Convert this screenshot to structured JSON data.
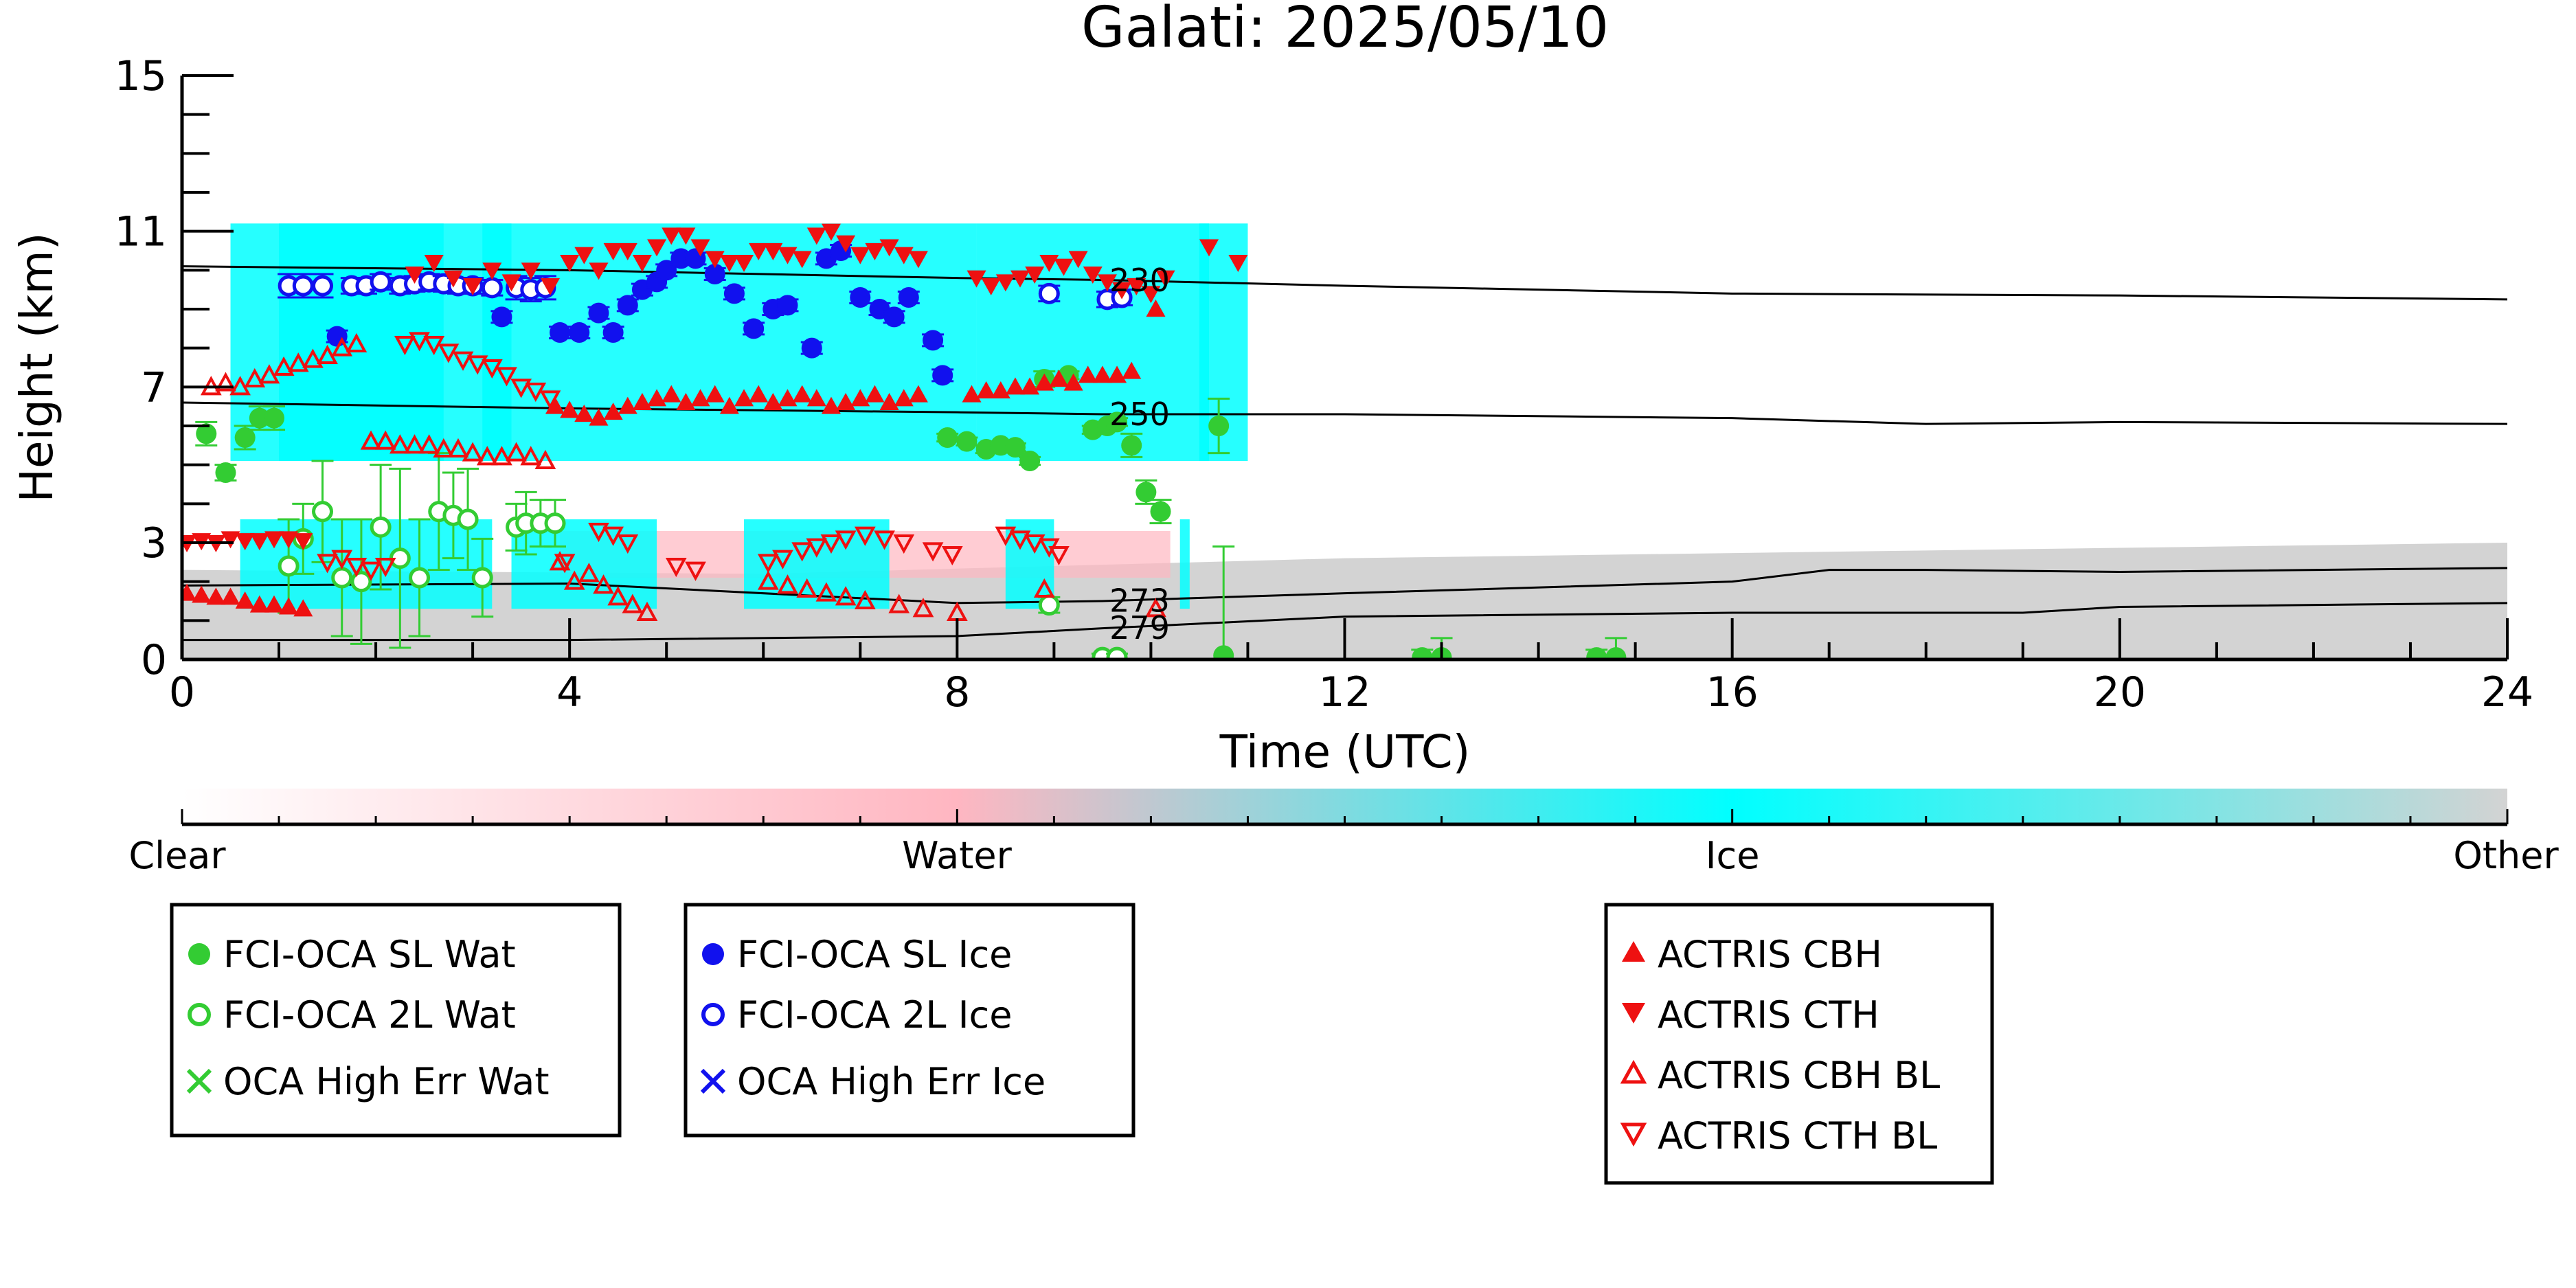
{
  "chart_data": {
    "type": "scatter",
    "title": "Galati: 2025/05/10",
    "xlabel": "Time (UTC)",
    "ylabel": "Height (km)",
    "xlim": [
      0,
      24
    ],
    "ylim": [
      0,
      15
    ],
    "x_ticks": [
      "0",
      "4",
      "8",
      "12",
      "16",
      "20",
      "24"
    ],
    "y_ticks": [
      "0",
      "3",
      "7",
      "11",
      "15"
    ],
    "colorbar": {
      "labels": [
        "Clear",
        "Water",
        "Ice",
        "Other"
      ],
      "colors": [
        "#ffffff",
        "#ffb6c1",
        "#00ffff",
        "#d3d3d3"
      ]
    },
    "background_regions": [
      {
        "class": "Other",
        "x": [
          0,
          24
        ],
        "y_top": [
          2.3,
          2.2,
          2.6,
          2.8,
          3.0
        ]
      },
      {
        "class": "Water",
        "x": [
          3.9,
          10.2
        ],
        "y": [
          2.1,
          3.3
        ]
      },
      {
        "class": "Ice",
        "x": [
          0.5,
          11
        ],
        "y": [
          1.3,
          3.6
        ],
        "segments": [
          [
            0.6,
            3.2
          ],
          [
            3.4,
            4.9
          ],
          [
            5.8,
            7.3
          ],
          [
            8.5,
            9.0
          ],
          [
            10.3,
            10.4
          ]
        ]
      },
      {
        "class": "Ice",
        "x": [
          0.3,
          11
        ],
        "y": [
          5.1,
          11.2
        ],
        "segments": [
          [
            0.5,
            2.7
          ],
          [
            1.0,
            3.4
          ],
          [
            3.1,
            8.2
          ],
          [
            8.2,
            10.6
          ],
          [
            10.5,
            11.0
          ]
        ]
      }
    ],
    "temperature_contours": [
      {
        "label": "230",
        "x": [
          0,
          4,
          8,
          9.5,
          12,
          16,
          20,
          24
        ],
        "y": [
          10.1,
          10.0,
          9.8,
          9.75,
          9.6,
          9.4,
          9.35,
          9.25
        ]
      },
      {
        "label": "250",
        "x": [
          0,
          4,
          8,
          9.5,
          12,
          16,
          18,
          20,
          24
        ],
        "y": [
          6.6,
          6.45,
          6.35,
          6.3,
          6.3,
          6.2,
          6.05,
          6.1,
          6.05
        ]
      },
      {
        "label": "273",
        "x": [
          0,
          4,
          8,
          9.5,
          12,
          16,
          17,
          18,
          20,
          24
        ],
        "y": [
          1.9,
          1.95,
          1.45,
          1.5,
          1.7,
          2.0,
          2.3,
          2.3,
          2.25,
          2.35
        ]
      },
      {
        "label": "279",
        "x": [
          0,
          4,
          8,
          9.5,
          12,
          16,
          19,
          20,
          24
        ],
        "y": [
          0.5,
          0.5,
          0.6,
          0.8,
          1.1,
          1.2,
          1.2,
          1.35,
          1.45
        ]
      }
    ],
    "series": [
      {
        "name": "FCI-OCA SL Wat",
        "marker": "filled-circle",
        "color": "#33cc33",
        "x": [
          0.25,
          0.45,
          0.65,
          0.8,
          0.95,
          7.9,
          8.1,
          8.3,
          8.45,
          8.6,
          8.75,
          8.9,
          9.15,
          9.4,
          9.55,
          9.65,
          9.8,
          9.95,
          10.1,
          10.7,
          10.75,
          12.8,
          13.0,
          14.6,
          14.8
        ],
        "y": [
          5.8,
          4.8,
          5.7,
          6.2,
          6.2,
          5.7,
          5.6,
          5.4,
          5.5,
          5.45,
          5.1,
          7.2,
          7.3,
          5.9,
          6.0,
          6.1,
          5.5,
          4.3,
          3.8,
          6.0,
          0.1,
          0.05,
          0.05,
          0.05,
          0.05
        ],
        "err": [
          0.3,
          0.2,
          0.3,
          0.3,
          0.3,
          0.1,
          0.1,
          0.1,
          0.1,
          0.1,
          0.1,
          0.2,
          0.1,
          0.1,
          0.1,
          0.1,
          0.3,
          0.3,
          0.3,
          0.7,
          2.8,
          0.2,
          0.5,
          0.2,
          0.5
        ]
      },
      {
        "name": "FCI-OCA 2L Wat",
        "marker": "open-circle",
        "color": "#33cc33",
        "x": [
          1.1,
          1.25,
          1.45,
          1.65,
          1.85,
          2.05,
          2.25,
          2.45,
          2.65,
          2.8,
          2.95,
          3.1,
          3.45,
          3.55,
          3.7,
          3.85,
          8.95,
          9.5,
          9.65
        ],
        "y": [
          2.4,
          3.1,
          3.8,
          2.1,
          2.0,
          3.4,
          2.6,
          2.1,
          3.8,
          3.7,
          3.6,
          2.1,
          3.4,
          3.5,
          3.5,
          3.5,
          1.4,
          0.05,
          0.05
        ],
        "err": [
          1.2,
          0.9,
          1.3,
          1.5,
          1.6,
          1.6,
          2.3,
          1.5,
          1.5,
          1.1,
          1.3,
          1.0,
          0.6,
          0.8,
          0.6,
          0.6,
          0.2,
          0.1,
          0.1
        ]
      },
      {
        "name": "FCI-OCA SL Ice",
        "marker": "filled-circle",
        "color": "#1111ee",
        "x": [
          1.6,
          3.3,
          3.9,
          4.1,
          4.3,
          4.45,
          4.6,
          4.75,
          4.9,
          5.0,
          5.15,
          5.3,
          5.5,
          5.7,
          5.9,
          6.1,
          6.25,
          6.5,
          6.65,
          6.8,
          7.0,
          7.2,
          7.35,
          7.5,
          7.75,
          7.85
        ],
        "y": [
          8.3,
          8.8,
          8.4,
          8.4,
          8.9,
          8.4,
          9.1,
          9.5,
          9.7,
          10.0,
          10.3,
          10.3,
          9.9,
          9.4,
          8.5,
          9.0,
          9.1,
          8.0,
          10.3,
          10.5,
          9.3,
          9.0,
          8.8,
          9.3,
          8.2,
          7.3
        ],
        "err": [
          0.15,
          0.15,
          0.15,
          0.15,
          0.15,
          0.15,
          0.15,
          0.15,
          0.15,
          0.15,
          0.15,
          0.15,
          0.15,
          0.15,
          0.15,
          0.15,
          0.15,
          0.15,
          0.15,
          0.15,
          0.15,
          0.15,
          0.15,
          0.15,
          0.15,
          0.15
        ]
      },
      {
        "name": "FCI-OCA 2L Ice",
        "marker": "open-circle",
        "color": "#1111ee",
        "x": [
          1.1,
          1.25,
          1.45,
          1.75,
          1.9,
          2.05,
          2.25,
          2.4,
          2.55,
          2.7,
          2.85,
          3.0,
          3.2,
          3.45,
          3.6,
          3.75,
          8.95,
          9.55,
          9.7
        ],
        "y": [
          9.6,
          9.6,
          9.6,
          9.6,
          9.6,
          9.7,
          9.6,
          9.65,
          9.7,
          9.65,
          9.6,
          9.6,
          9.55,
          9.55,
          9.5,
          9.55,
          9.4,
          9.25,
          9.3
        ],
        "err": [
          0.3,
          0.3,
          0.3,
          0.2,
          0.2,
          0.2,
          0.2,
          0.2,
          0.2,
          0.2,
          0.2,
          0.2,
          0.2,
          0.3,
          0.3,
          0.3,
          0.2,
          0.2,
          0.2
        ]
      },
      {
        "name": "OCA High Err Wat",
        "marker": "cross",
        "color": "#33cc33",
        "x": [],
        "y": []
      },
      {
        "name": "OCA High Err Ice",
        "marker": "cross",
        "color": "#1111ee",
        "x": [],
        "y": []
      },
      {
        "name": "ACTRIS CBH",
        "marker": "filled-triangle-up",
        "color": "#ee1111",
        "x": [
          0.05,
          0.2,
          0.35,
          0.5,
          0.65,
          0.8,
          0.95,
          1.1,
          1.25,
          3.85,
          4.0,
          4.15,
          4.3,
          4.45,
          4.6,
          4.75,
          4.9,
          5.05,
          5.2,
          5.35,
          5.5,
          5.65,
          5.8,
          5.95,
          6.1,
          6.25,
          6.4,
          6.55,
          6.7,
          6.85,
          7.0,
          7.15,
          7.3,
          7.45,
          7.6,
          8.15,
          8.3,
          8.45,
          8.6,
          8.75,
          8.9,
          9.05,
          9.2,
          9.35,
          9.5,
          9.65,
          9.8,
          10.05
        ],
        "y": [
          1.7,
          1.65,
          1.6,
          1.6,
          1.5,
          1.4,
          1.4,
          1.35,
          1.3,
          6.5,
          6.4,
          6.3,
          6.2,
          6.35,
          6.5,
          6.6,
          6.7,
          6.8,
          6.6,
          6.7,
          6.8,
          6.5,
          6.7,
          6.8,
          6.6,
          6.7,
          6.8,
          6.7,
          6.5,
          6.6,
          6.7,
          6.8,
          6.6,
          6.7,
          6.8,
          6.8,
          6.9,
          6.9,
          7.0,
          7.0,
          7.1,
          7.2,
          7.1,
          7.3,
          7.3,
          7.3,
          7.4,
          9.0
        ],
        "err": []
      },
      {
        "name": "ACTRIS CTH",
        "marker": "filled-triangle-down",
        "color": "#ee1111",
        "x": [
          0.05,
          0.2,
          0.35,
          0.5,
          0.65,
          0.8,
          0.95,
          1.1,
          1.25,
          2.4,
          2.6,
          2.8,
          3.0,
          3.2,
          3.4,
          3.6,
          3.8,
          4.0,
          4.15,
          4.3,
          4.45,
          4.6,
          4.75,
          4.9,
          5.05,
          5.2,
          5.35,
          5.5,
          5.65,
          5.8,
          5.95,
          6.1,
          6.25,
          6.4,
          6.55,
          6.7,
          6.85,
          7.0,
          7.15,
          7.3,
          7.45,
          7.6,
          8.2,
          8.35,
          8.5,
          8.65,
          8.8,
          8.95,
          9.1,
          9.25,
          9.4,
          9.55,
          9.7,
          9.85,
          10.0,
          10.15,
          10.6,
          10.9
        ],
        "y": [
          3.0,
          3.05,
          3.0,
          3.1,
          3.05,
          3.05,
          3.1,
          3.1,
          3.05,
          9.9,
          10.2,
          9.8,
          9.6,
          10.0,
          9.7,
          10.0,
          9.6,
          10.2,
          10.4,
          10.0,
          10.5,
          10.5,
          10.2,
          10.6,
          10.9,
          10.9,
          10.6,
          10.3,
          10.2,
          10.2,
          10.5,
          10.5,
          10.4,
          10.3,
          10.9,
          11.0,
          10.7,
          10.4,
          10.5,
          10.6,
          10.4,
          10.3,
          9.8,
          9.6,
          9.7,
          9.8,
          9.9,
          10.2,
          10.1,
          10.3,
          9.9,
          9.7,
          9.5,
          9.6,
          9.4,
          9.8,
          10.6,
          10.2
        ],
        "err": []
      },
      {
        "name": "ACTRIS CBH BL",
        "marker": "open-triangle-up",
        "color": "#ee1111",
        "x": [
          0.3,
          0.45,
          0.6,
          0.75,
          0.9,
          1.05,
          1.2,
          1.35,
          1.5,
          1.65,
          1.8,
          1.95,
          2.1,
          2.25,
          2.4,
          2.55,
          2.7,
          2.85,
          3.0,
          3.15,
          3.3,
          3.45,
          3.6,
          3.75,
          3.9,
          4.05,
          4.2,
          4.35,
          4.5,
          4.65,
          4.8,
          6.05,
          6.25,
          6.45,
          6.65,
          6.85,
          7.05,
          7.4,
          7.65,
          8.0,
          8.9,
          10.05
        ],
        "y": [
          7.0,
          7.1,
          7.0,
          7.2,
          7.3,
          7.5,
          7.6,
          7.7,
          7.8,
          8.0,
          8.1,
          5.6,
          5.6,
          5.5,
          5.5,
          5.5,
          5.4,
          5.4,
          5.3,
          5.2,
          5.2,
          5.3,
          5.2,
          5.1,
          2.5,
          2.0,
          2.2,
          1.9,
          1.6,
          1.4,
          1.2,
          2.0,
          1.9,
          1.8,
          1.7,
          1.6,
          1.5,
          1.4,
          1.3,
          1.2,
          1.8,
          1.3
        ],
        "err": []
      },
      {
        "name": "ACTRIS CTH BL",
        "marker": "open-triangle-down",
        "color": "#ee1111",
        "x": [
          1.5,
          1.65,
          1.8,
          1.95,
          2.1,
          2.3,
          2.45,
          2.6,
          2.75,
          2.9,
          3.05,
          3.2,
          3.35,
          3.5,
          3.65,
          3.8,
          3.95,
          4.3,
          4.45,
          4.6,
          5.1,
          5.3,
          6.05,
          6.2,
          6.4,
          6.55,
          6.7,
          6.85,
          7.05,
          7.25,
          7.45,
          7.75,
          7.95,
          8.5,
          8.65,
          8.8,
          8.95,
          9.05
        ],
        "y": [
          2.5,
          2.6,
          2.4,
          2.3,
          2.4,
          8.1,
          8.2,
          8.1,
          7.9,
          7.7,
          7.6,
          7.5,
          7.3,
          7.0,
          6.9,
          6.7,
          2.5,
          3.3,
          3.2,
          3.0,
          2.4,
          2.3,
          2.5,
          2.6,
          2.8,
          2.9,
          3.0,
          3.1,
          3.2,
          3.1,
          3.0,
          2.8,
          2.7,
          3.2,
          3.1,
          3.0,
          2.9,
          2.7
        ],
        "err": []
      }
    ],
    "legend": [
      {
        "group": "oca-wat",
        "entries": [
          "FCI-OCA SL Wat",
          "FCI-OCA 2L Wat",
          "OCA High Err Wat"
        ]
      },
      {
        "group": "oca-ice",
        "entries": [
          "FCI-OCA SL Ice",
          "FCI-OCA 2L Ice",
          "OCA High Err Ice"
        ]
      },
      {
        "group": "actris",
        "entries": [
          "ACTRIS CBH",
          "ACTRIS CTH",
          "ACTRIS CBH BL",
          "ACTRIS CTH BL"
        ]
      }
    ]
  }
}
